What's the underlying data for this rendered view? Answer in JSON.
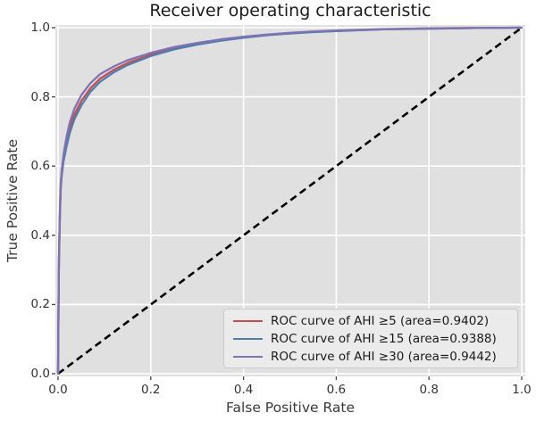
{
  "figure": {
    "title": "Receiver operating characteristic",
    "xlabel": "False Positive Rate",
    "ylabel": "True Positive Rate"
  },
  "chart_data": {
    "type": "line",
    "title": "Receiver operating characteristic",
    "xlabel": "False Positive Rate",
    "ylabel": "True Positive Rate",
    "xlim": [
      0.0,
      1.0
    ],
    "ylim": [
      0.0,
      1.0
    ],
    "xticks": [
      0.0,
      0.2,
      0.4,
      0.6,
      0.8,
      1.0
    ],
    "yticks": [
      0.0,
      0.2,
      0.4,
      0.6,
      0.8,
      1.0
    ],
    "xtick_labels": [
      "0.0",
      "0.2",
      "0.4",
      "0.6",
      "0.8",
      "1.0"
    ],
    "ytick_labels": [
      "0.0",
      "0.2",
      "0.4",
      "0.6",
      "0.8",
      "1.0"
    ],
    "grid": true,
    "plot_background": "#e0e0e0",
    "gridline_color": "#ffffff",
    "tick_color": "#444444",
    "legend_position": "lower right",
    "series": [
      {
        "name": "AHI ≥5",
        "legend_label": "ROC curve of AHI ≥5 (area=0.9402)",
        "auc": 0.9402,
        "color": "#c44e52",
        "points": [
          [
            0,
            0
          ],
          [
            0.001,
            0.2
          ],
          [
            0.002,
            0.34
          ],
          [
            0.004,
            0.48
          ],
          [
            0.006,
            0.555
          ],
          [
            0.008,
            0.585
          ],
          [
            0.012,
            0.625
          ],
          [
            0.018,
            0.668
          ],
          [
            0.025,
            0.708
          ],
          [
            0.035,
            0.748
          ],
          [
            0.05,
            0.788
          ],
          [
            0.07,
            0.825
          ],
          [
            0.09,
            0.852
          ],
          [
            0.12,
            0.878
          ],
          [
            0.15,
            0.898
          ],
          [
            0.2,
            0.922
          ],
          [
            0.25,
            0.94
          ],
          [
            0.3,
            0.953
          ],
          [
            0.35,
            0.964
          ],
          [
            0.4,
            0.972
          ],
          [
            0.45,
            0.979
          ],
          [
            0.5,
            0.984
          ],
          [
            0.55,
            0.988
          ],
          [
            0.6,
            0.991
          ],
          [
            0.7,
            0.995
          ],
          [
            0.8,
            0.998
          ],
          [
            0.9,
            0.999
          ],
          [
            1,
            1
          ]
        ]
      },
      {
        "name": "AHI ≥15",
        "legend_label": "ROC curve of AHI ≥15 (area=0.9388)",
        "auc": 0.9388,
        "color": "#4d7fae",
        "points": [
          [
            0,
            0
          ],
          [
            0.001,
            0.18
          ],
          [
            0.002,
            0.32
          ],
          [
            0.004,
            0.46
          ],
          [
            0.006,
            0.54
          ],
          [
            0.008,
            0.575
          ],
          [
            0.012,
            0.615
          ],
          [
            0.018,
            0.655
          ],
          [
            0.025,
            0.695
          ],
          [
            0.035,
            0.735
          ],
          [
            0.05,
            0.775
          ],
          [
            0.07,
            0.815
          ],
          [
            0.09,
            0.843
          ],
          [
            0.12,
            0.871
          ],
          [
            0.15,
            0.892
          ],
          [
            0.2,
            0.918
          ],
          [
            0.25,
            0.937
          ],
          [
            0.3,
            0.951
          ],
          [
            0.35,
            0.962
          ],
          [
            0.4,
            0.971
          ],
          [
            0.45,
            0.978
          ],
          [
            0.5,
            0.983
          ],
          [
            0.55,
            0.987
          ],
          [
            0.6,
            0.99
          ],
          [
            0.7,
            0.995
          ],
          [
            0.8,
            0.997
          ],
          [
            0.9,
            0.999
          ],
          [
            1,
            1
          ]
        ]
      },
      {
        "name": "AHI ≥30",
        "legend_label": "ROC curve of AHI ≥30 (area=0.9442)",
        "auc": 0.9442,
        "color": "#8172b2",
        "points": [
          [
            0,
            0
          ],
          [
            0.001,
            0.19
          ],
          [
            0.002,
            0.33
          ],
          [
            0.004,
            0.47
          ],
          [
            0.006,
            0.55
          ],
          [
            0.008,
            0.59
          ],
          [
            0.012,
            0.635
          ],
          [
            0.018,
            0.682
          ],
          [
            0.025,
            0.725
          ],
          [
            0.035,
            0.765
          ],
          [
            0.05,
            0.805
          ],
          [
            0.07,
            0.84
          ],
          [
            0.09,
            0.865
          ],
          [
            0.12,
            0.888
          ],
          [
            0.15,
            0.906
          ],
          [
            0.2,
            0.927
          ],
          [
            0.25,
            0.944
          ],
          [
            0.3,
            0.956
          ],
          [
            0.35,
            0.966
          ],
          [
            0.4,
            0.974
          ],
          [
            0.45,
            0.98
          ],
          [
            0.5,
            0.985
          ],
          [
            0.55,
            0.989
          ],
          [
            0.6,
            0.992
          ],
          [
            0.7,
            0.996
          ],
          [
            0.8,
            0.998
          ],
          [
            0.9,
            0.999
          ],
          [
            1,
            1
          ]
        ]
      }
    ],
    "reference_line": {
      "style": "dashed",
      "color": "#000000",
      "from": [
        0,
        0
      ],
      "to": [
        1,
        1
      ]
    }
  }
}
